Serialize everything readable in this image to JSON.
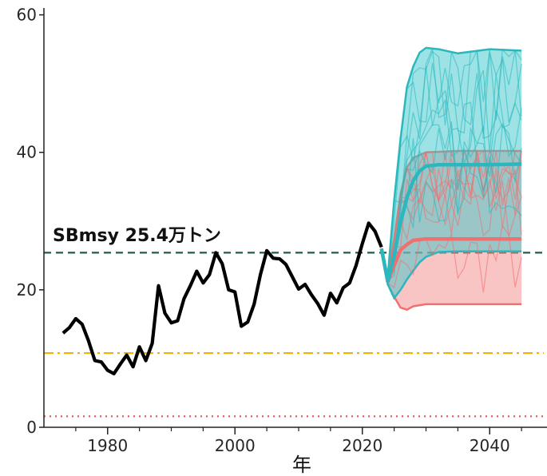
{
  "chart_data": {
    "type": "line",
    "title": "",
    "xlabel": "年",
    "ylabel": "",
    "xlim": [
      1970,
      2049
    ],
    "ylim": [
      0,
      61
    ],
    "x_ticks": [
      1980,
      2000,
      2020,
      2040
    ],
    "y_ticks": [
      0,
      20,
      40,
      60
    ],
    "x_tick_labels": [
      "1980",
      "2000",
      "2020",
      "2040"
    ],
    "y_tick_labels": [
      "0",
      "20",
      "40",
      "60"
    ],
    "grid": false,
    "annotation": "SBmsy 25.4万トン",
    "reference_lines": [
      {
        "y": 25.4,
        "style": "dashed",
        "color": "#1e5e48"
      },
      {
        "y": 10.8,
        "style": "dashdot",
        "color": "#f0b400"
      },
      {
        "y": 1.6,
        "style": "dotted",
        "color": "#e06060"
      }
    ],
    "historical": {
      "color": "#000000",
      "x": [
        1973,
        1974,
        1975,
        1976,
        1977,
        1978,
        1979,
        1980,
        1981,
        1982,
        1983,
        1984,
        1985,
        1986,
        1987,
        1988,
        1989,
        1990,
        1991,
        1992,
        1993,
        1994,
        1995,
        1996,
        1997,
        1998,
        1999,
        2000,
        2001,
        2002,
        2003,
        2004,
        2005,
        2006,
        2007,
        2008,
        2009,
        2010,
        2011,
        2012,
        2013,
        2014,
        2015,
        2016,
        2017,
        2018,
        2019,
        2020,
        2021,
        2022,
        2023
      ],
      "y": [
        13.7,
        14.5,
        15.8,
        15.0,
        12.6,
        9.7,
        9.5,
        8.3,
        7.8,
        9.2,
        10.5,
        8.8,
        11.7,
        9.7,
        12.2,
        20.6,
        16.6,
        15.2,
        15.5,
        18.7,
        20.6,
        22.7,
        21.0,
        22.2,
        25.4,
        23.8,
        20.0,
        19.7,
        14.7,
        15.3,
        17.9,
        22.2,
        25.7,
        24.6,
        24.5,
        23.7,
        21.9,
        20.1,
        20.8,
        19.3,
        18.0,
        16.3,
        19.5,
        18.1,
        20.3,
        21.0,
        23.5,
        26.7,
        29.7,
        28.5,
        26.2
      ]
    },
    "projections": [
      {
        "name": "",
        "color": "#f07070",
        "band_color": "#f48a8a",
        "x": [
          2023,
          2024,
          2025,
          2026,
          2027,
          2028,
          2030,
          2035,
          2040,
          2045
        ],
        "median": [
          26.0,
          21.2,
          23.5,
          25.8,
          26.6,
          27.2,
          27.4,
          27.4,
          27.4,
          27.4
        ],
        "lower": [
          26.0,
          20.8,
          19.0,
          17.4,
          17.1,
          17.6,
          17.9,
          17.9,
          17.9,
          17.9
        ],
        "upper": [
          26.0,
          21.8,
          27.5,
          34.0,
          37.8,
          39.2,
          40.0,
          40.2,
          40.2,
          40.2
        ]
      },
      {
        "name": "",
        "color": "#2ab8be",
        "band_color": "#3cc8cc",
        "x": [
          2023,
          2024,
          2025,
          2026,
          2027,
          2028,
          2029,
          2030,
          2032,
          2035,
          2040,
          2045
        ],
        "median": [
          26.0,
          21.2,
          25.0,
          29.8,
          33.4,
          35.9,
          37.3,
          38.0,
          38.2,
          38.2,
          38.2,
          38.3
        ],
        "lower": [
          26.0,
          20.8,
          18.8,
          20.0,
          21.5,
          22.8,
          24.0,
          24.8,
          25.5,
          25.6,
          25.6,
          25.6
        ],
        "upper": [
          26.0,
          22.0,
          33.0,
          42.0,
          49.5,
          52.5,
          54.5,
          55.2,
          55.0,
          54.4,
          55.0,
          54.8
        ]
      }
    ]
  }
}
